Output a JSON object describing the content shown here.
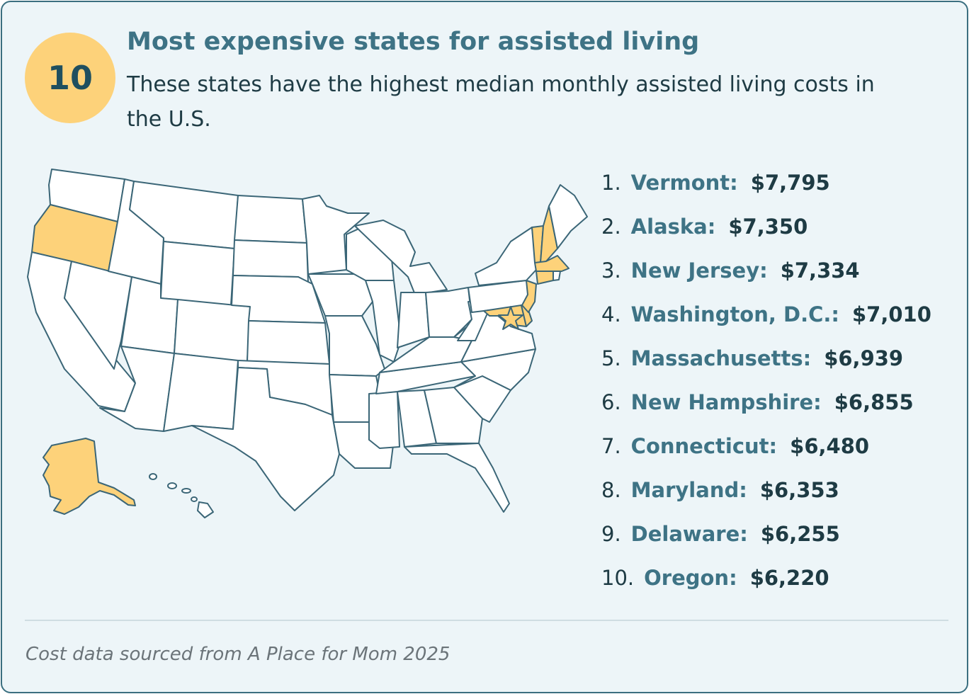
{
  "header": {
    "badge": "10",
    "title": "Most expensive states for assisted living",
    "subtitle": "These states have the highest median monthly assisted living costs in the U.S."
  },
  "rankings": [
    {
      "rank": "1.",
      "state": "Vermont",
      "cost": "$7,795"
    },
    {
      "rank": "2.",
      "state": "Alaska",
      "cost": "$7,350"
    },
    {
      "rank": "3.",
      "state": "New Jersey",
      "cost": "$7,334"
    },
    {
      "rank": "4.",
      "state": "Washington, D.C.",
      "cost": "$7,010"
    },
    {
      "rank": "5.",
      "state": "Massachusetts",
      "cost": "$6,939"
    },
    {
      "rank": "6.",
      "state": "New Hampshire",
      "cost": "$6,855"
    },
    {
      "rank": "7.",
      "state": "Connecticut",
      "cost": "$6,480"
    },
    {
      "rank": "8.",
      "state": "Maryland",
      "cost": "$6,353"
    },
    {
      "rank": "9.",
      "state": "Delaware",
      "cost": "$6,255"
    },
    {
      "rank": "10.",
      "state": "Oregon",
      "cost": "$6,220"
    }
  ],
  "footer": {
    "source": "Cost data sourced from A Place for Mom 2025"
  },
  "map": {
    "highlighted_states": [
      "Vermont",
      "Alaska",
      "New Jersey",
      "Washington, D.C.",
      "Massachusetts",
      "New Hampshire",
      "Connecticut",
      "Maryland",
      "Delaware",
      "Oregon"
    ],
    "dc_marker": "star-icon"
  },
  "colors": {
    "card_background": "#edf5f8",
    "card_border": "#3b6f80",
    "highlight": "#fdd27a",
    "title": "#3e7385",
    "text_dark": "#1e3b44",
    "state_outline": "#3b6677"
  }
}
